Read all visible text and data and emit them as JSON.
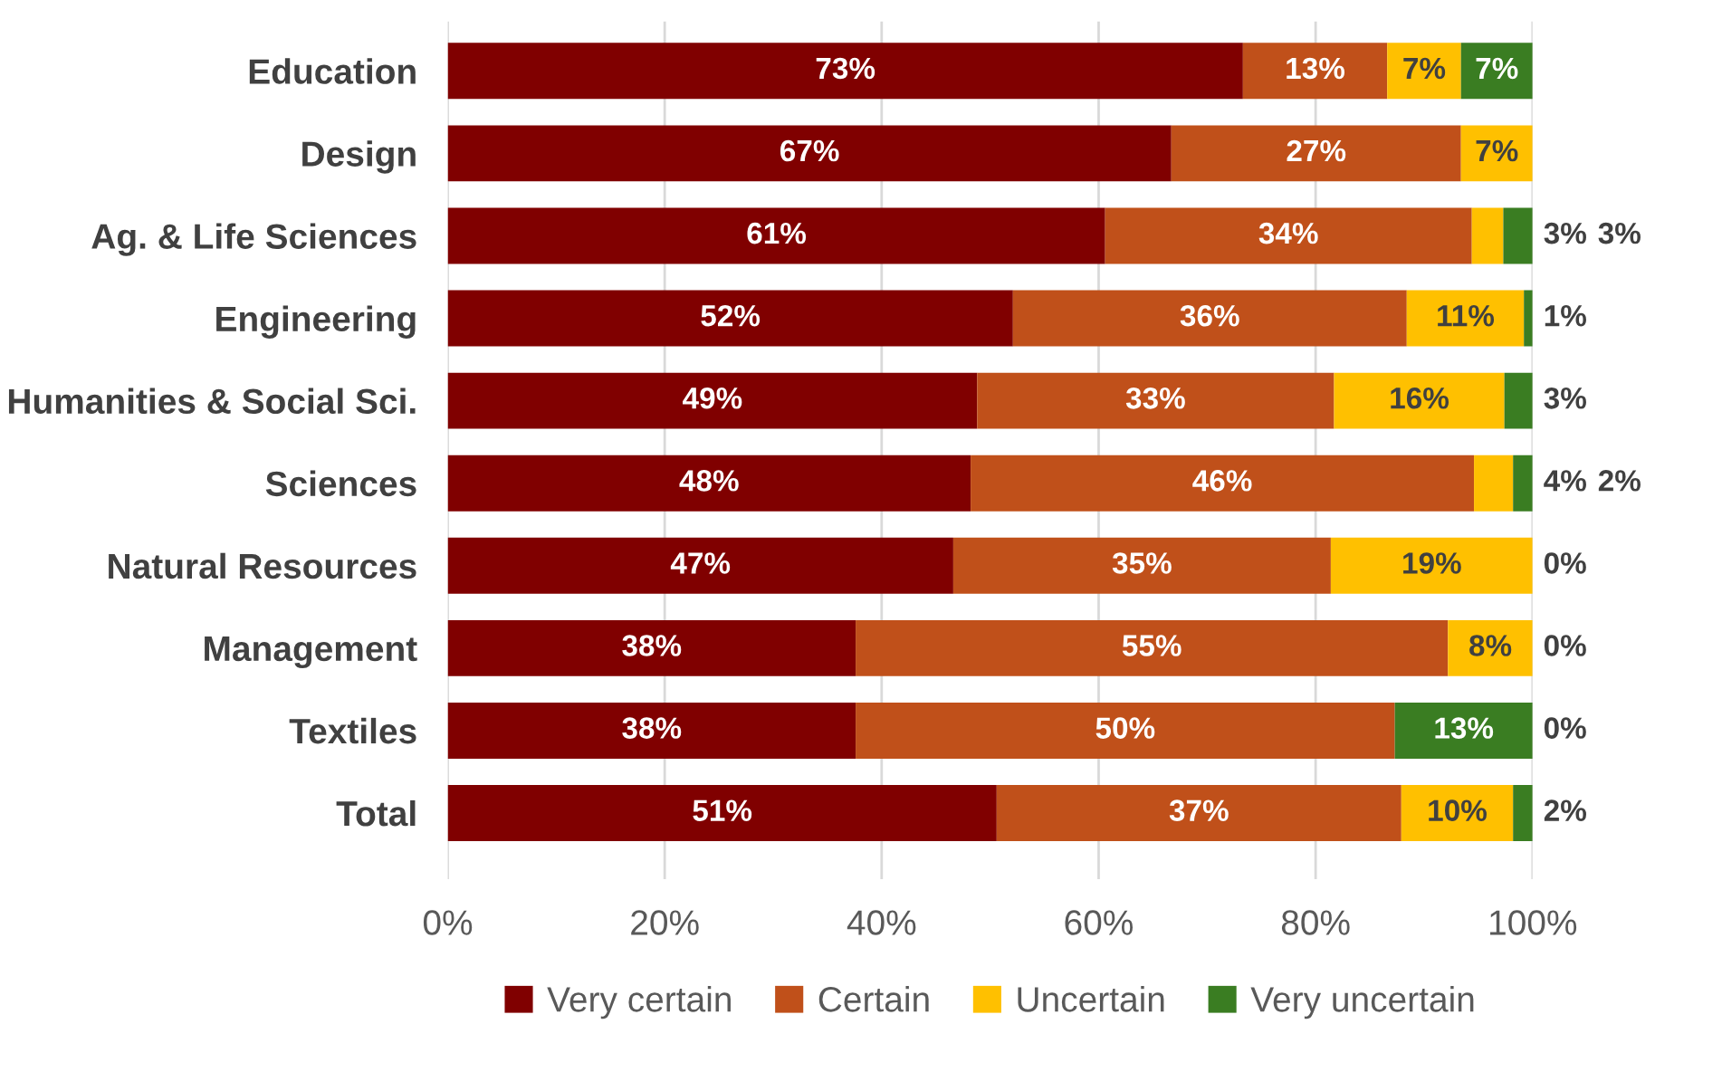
{
  "chart_data": {
    "type": "bar",
    "orientation": "horizontal",
    "stacked": true,
    "categories": [
      "Education",
      "Design",
      "Ag. & Life Sciences",
      "Engineering",
      "Humanities & Social Sci.",
      "Sciences",
      "Natural Resources",
      "Management",
      "Textiles",
      "Total"
    ],
    "series": [
      {
        "name": "Very certain",
        "color": "#800000",
        "values": [
          73.3,
          66.7,
          60.6,
          52.1,
          48.8,
          48.2,
          46.6,
          37.6,
          37.6,
          50.6
        ],
        "value_labels": [
          "73%",
          "67%",
          "61%",
          "52%",
          "49%",
          "48%",
          "47%",
          "38%",
          "38%",
          "51%"
        ]
      },
      {
        "name": "Certain",
        "color": "#c0501a",
        "values": [
          13.3,
          26.7,
          33.8,
          36.3,
          32.9,
          46.4,
          34.8,
          54.6,
          49.7,
          37.3
        ],
        "value_labels": [
          "13%",
          "27%",
          "34%",
          "36%",
          "33%",
          "46%",
          "35%",
          "55%",
          "50%",
          "37%"
        ]
      },
      {
        "name": "Uncertain",
        "color": "#ffc000",
        "values": [
          6.8,
          6.6,
          2.9,
          10.8,
          15.7,
          3.6,
          18.6,
          7.8,
          0,
          10.3
        ],
        "value_labels": [
          "7%",
          "7%",
          "3%",
          "11%",
          "16%",
          "4%",
          "19%",
          "8%",
          "0%",
          "10%"
        ]
      },
      {
        "name": "Very uncertain",
        "color": "#3a7d22",
        "values": [
          6.6,
          null,
          2.7,
          0.8,
          2.6,
          1.8,
          0,
          0,
          12.7,
          1.8
        ],
        "value_labels": [
          "7%",
          null,
          "3%",
          "1%",
          "3%",
          "2%",
          "0%",
          "0%",
          "13%",
          "2%"
        ]
      }
    ],
    "xlim": [
      0,
      100
    ],
    "xticks": [
      {
        "value": 0,
        "label": "0%"
      },
      {
        "value": 20,
        "label": "20%"
      },
      {
        "value": 40,
        "label": "40%"
      },
      {
        "value": 60,
        "label": "60%"
      },
      {
        "value": 80,
        "label": "80%"
      },
      {
        "value": 100,
        "label": "100%"
      }
    ],
    "grid": "x",
    "legend": "bottom"
  }
}
